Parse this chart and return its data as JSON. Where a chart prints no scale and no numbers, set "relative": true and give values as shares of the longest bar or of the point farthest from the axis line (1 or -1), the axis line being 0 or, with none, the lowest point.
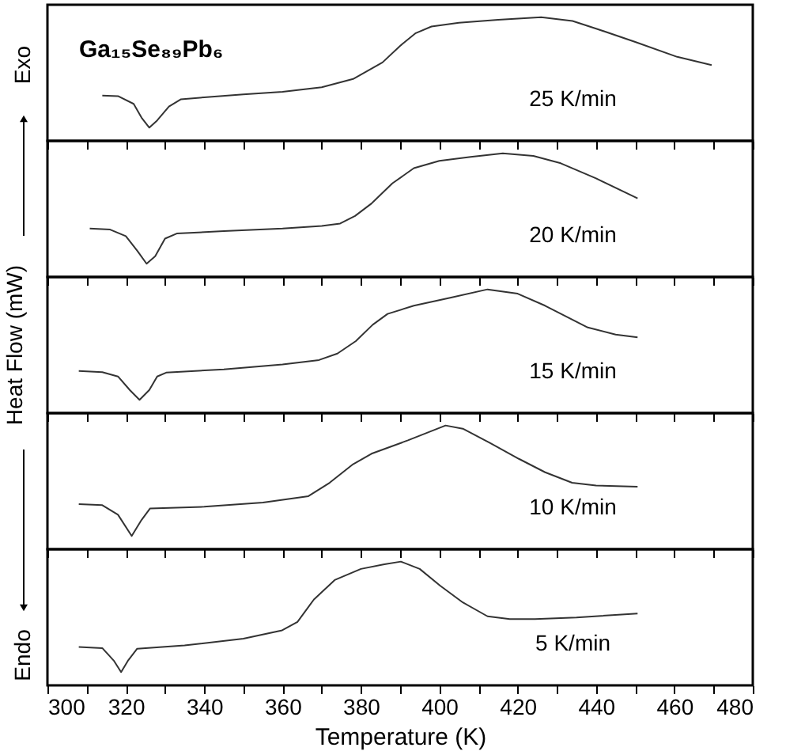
{
  "chart_data": [
    {
      "type": "line",
      "relative": true,
      "xlim": [
        300,
        480
      ],
      "tick_labels": false,
      "annotations": [
        "Ga₁₅Se₈₉Pb₆",
        "Exo"
      ],
      "xticks": [
        300,
        {
          "value": 310,
          "label": null
        },
        320,
        {
          "value": 330,
          "label": null
        },
        340,
        {
          "value": 350,
          "label": null
        },
        360,
        {
          "value": 370,
          "label": null
        },
        380,
        {
          "value": 390,
          "label": null
        },
        400,
        {
          "value": 410,
          "label": null
        },
        420,
        {
          "value": 430,
          "label": null
        },
        440,
        {
          "value": 450,
          "label": null
        },
        460,
        {
          "value": 470,
          "label": null
        },
        480
      ],
      "series": [
        {
          "name": "25 K/min",
          "color": "#333333",
          "x": [
            314,
            318,
            322,
            324,
            326,
            328,
            331,
            334,
            340,
            350,
            360,
            370,
            378,
            385.5,
            390,
            394,
            398,
            405,
            415,
            426,
            434,
            440.5,
            450,
            460.7,
            469.5
          ],
          "values": [
            0.366,
            0.362,
            0.299,
            0.188,
            0.107,
            0.165,
            0.277,
            0.335,
            0.352,
            0.375,
            0.397,
            0.433,
            0.5,
            0.634,
            0.768,
            0.871,
            0.924,
            0.955,
            0.978,
            1,
            0.969,
            0.902,
            0.799,
            0.679,
            0.612
          ]
        }
      ]
    },
    {
      "type": "line",
      "relative": true,
      "xlim": [
        300,
        480
      ],
      "tick_labels": false,
      "xticks": [
        300,
        {
          "value": 310,
          "label": null
        },
        320,
        {
          "value": 330,
          "label": null
        },
        340,
        {
          "value": 350,
          "label": null
        },
        360,
        {
          "value": 370,
          "label": null
        },
        380,
        {
          "value": 390,
          "label": null
        },
        400,
        {
          "value": 410,
          "label": null
        },
        420,
        {
          "value": 430,
          "label": null
        },
        440,
        {
          "value": 450,
          "label": null
        },
        460,
        {
          "value": 470,
          "label": null
        },
        480
      ],
      "series": [
        {
          "name": "20 K/min",
          "color": "#333333",
          "x": [
            310.8,
            316,
            320,
            323,
            325.3,
            327.5,
            330,
            333,
            345,
            360,
            370,
            374.7,
            378.5,
            382.7,
            388,
            393.5,
            400,
            408,
            416.2,
            424,
            431,
            440,
            450.6
          ],
          "values": [
            0.391,
            0.383,
            0.33,
            0.209,
            0.107,
            0.168,
            0.31,
            0.351,
            0.371,
            0.391,
            0.412,
            0.432,
            0.493,
            0.594,
            0.756,
            0.879,
            0.939,
            0.971,
            1,
            0.979,
            0.919,
            0.797,
            0.635
          ]
        }
      ]
    },
    {
      "type": "line",
      "relative": true,
      "xlim": [
        300,
        480
      ],
      "tick_labels": false,
      "ylabel": "Heat Flow (mW)",
      "xticks": [
        300,
        {
          "value": 310,
          "label": null
        },
        320,
        {
          "value": 330,
          "label": null
        },
        340,
        {
          "value": 350,
          "label": null
        },
        360,
        {
          "value": 370,
          "label": null
        },
        380,
        {
          "value": 390,
          "label": null
        },
        400,
        {
          "value": 410,
          "label": null
        },
        420,
        {
          "value": 430,
          "label": null
        },
        440,
        {
          "value": 450,
          "label": null
        },
        460,
        {
          "value": 470,
          "label": null
        },
        480
      ],
      "series": [
        {
          "name": "15 K/min",
          "color": "#333333",
          "x": [
            308,
            314,
            318,
            321,
            323.5,
            326,
            328,
            330.3,
            345,
            360,
            369.3,
            374,
            378.7,
            383,
            386.8,
            393.5,
            403,
            412.3,
            420,
            427,
            437.9,
            445,
            450.6
          ],
          "values": [
            0.34,
            0.331,
            0.296,
            0.187,
            0.107,
            0.187,
            0.296,
            0.327,
            0.354,
            0.393,
            0.429,
            0.481,
            0.582,
            0.714,
            0.802,
            0.868,
            0.934,
            1,
            0.965,
            0.868,
            0.692,
            0.635,
            0.613
          ]
        }
      ]
    },
    {
      "type": "line",
      "relative": true,
      "xlim": [
        300,
        480
      ],
      "tick_labels": false,
      "xticks": [
        300,
        {
          "value": 310,
          "label": null
        },
        320,
        {
          "value": 330,
          "label": null
        },
        340,
        {
          "value": 350,
          "label": null
        },
        360,
        {
          "value": 370,
          "label": null
        },
        380,
        {
          "value": 390,
          "label": null
        },
        400,
        {
          "value": 410,
          "label": null
        },
        420,
        {
          "value": 430,
          "label": null
        },
        440,
        {
          "value": 450,
          "label": null
        },
        460,
        {
          "value": 470,
          "label": null
        },
        480
      ],
      "series": [
        {
          "name": "10 K/min",
          "color": "#333333",
          "x": [
            308,
            314,
            318,
            321.5,
            324,
            326.2,
            340,
            355,
            366.6,
            372,
            378,
            382.7,
            392,
            401.6,
            406,
            413,
            420.4,
            427,
            433.9,
            440,
            450.6
          ],
          "values": [
            0.364,
            0.356,
            0.279,
            0.107,
            0.236,
            0.33,
            0.343,
            0.378,
            0.429,
            0.537,
            0.687,
            0.772,
            0.88,
            1,
            0.974,
            0.858,
            0.729,
            0.622,
            0.537,
            0.515,
            0.506
          ]
        }
      ]
    },
    {
      "type": "line",
      "relative": true,
      "xlim": [
        300,
        480
      ],
      "tick_labels": "x",
      "xlabel": "Temperature (K)",
      "annotations": [
        "Endo"
      ],
      "xticks": [
        300,
        {
          "value": 310,
          "label": null
        },
        320,
        {
          "value": 330,
          "label": null
        },
        340,
        {
          "value": 350,
          "label": null
        },
        360,
        {
          "value": 370,
          "label": null
        },
        380,
        {
          "value": 390,
          "label": null
        },
        400,
        {
          "value": 410,
          "label": null
        },
        420,
        {
          "value": 430,
          "label": null
        },
        440,
        {
          "value": 450,
          "label": null
        },
        460,
        {
          "value": 470,
          "label": null
        },
        480
      ],
      "series": [
        {
          "name": "5 K/min",
          "color": "#333333",
          "x": [
            308,
            314,
            317,
            318.8,
            320.5,
            322.9,
            335,
            350,
            359.9,
            363.8,
            368,
            373.3,
            380,
            386,
            390.2,
            395,
            400.2,
            406,
            412.3,
            418,
            424.4,
            435,
            450.6
          ],
          "values": [
            0.31,
            0.301,
            0.197,
            0.107,
            0.197,
            0.296,
            0.323,
            0.377,
            0.445,
            0.513,
            0.694,
            0.851,
            0.941,
            0.978,
            1,
            0.941,
            0.806,
            0.67,
            0.558,
            0.536,
            0.536,
            0.549,
            0.58
          ]
        }
      ]
    }
  ]
}
